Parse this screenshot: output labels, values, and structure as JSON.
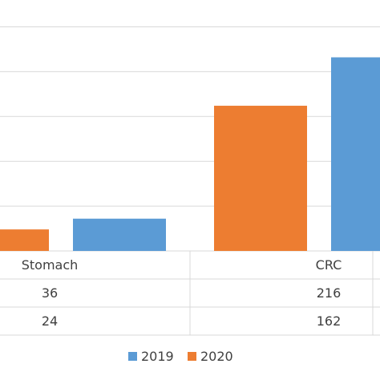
{
  "chart_data": {
    "type": "bar",
    "categories": [
      "Stomach",
      "CRC"
    ],
    "series": [
      {
        "name": "2019",
        "values": [
          36,
          216
        ],
        "color": "#5B9BD5"
      },
      {
        "name": "2020",
        "values": [
          24,
          162
        ],
        "color": "#ED7D31"
      }
    ],
    "title": "",
    "xlabel": "",
    "ylabel": "",
    "ylim": [
      0,
      250
    ],
    "grid": true,
    "legend": "bottom",
    "data_table": true
  }
}
